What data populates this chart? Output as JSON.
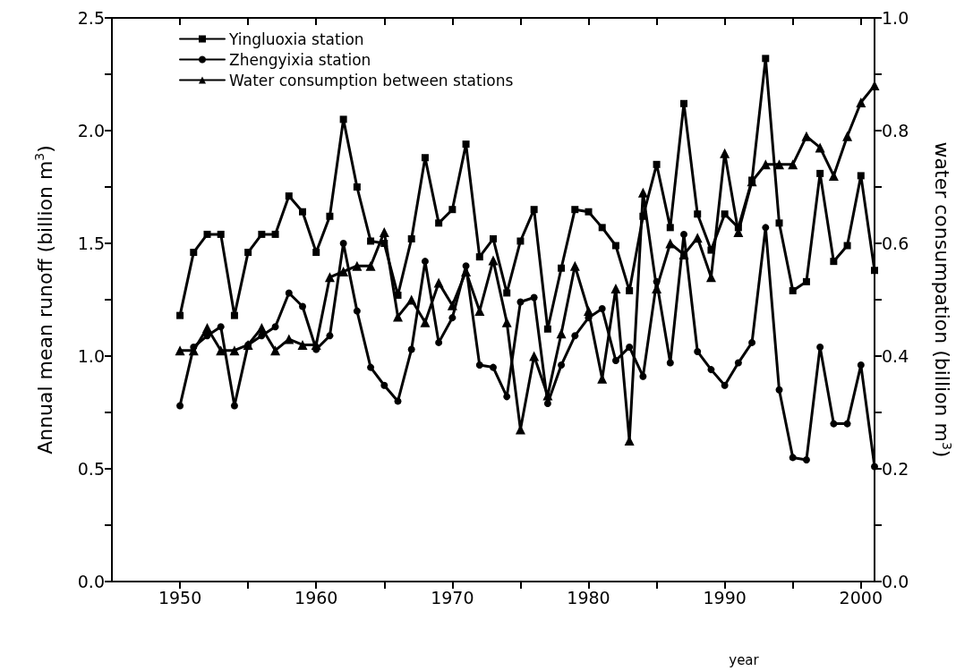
{
  "chart_data": {
    "type": "line",
    "xlabel": "year",
    "ylabel": "Annual mean runoff (billion m$^{3}$)",
    "y2label": "water consumpation (billion m$^{3}$)",
    "x": [
      1950,
      1951,
      1952,
      1953,
      1954,
      1955,
      1956,
      1957,
      1958,
      1959,
      1960,
      1961,
      1962,
      1963,
      1964,
      1965,
      1966,
      1967,
      1968,
      1969,
      1970,
      1971,
      1972,
      1973,
      1974,
      1975,
      1976,
      1977,
      1978,
      1979,
      1980,
      1981,
      1982,
      1983,
      1984,
      1985,
      1986,
      1987,
      1988,
      1989,
      1990,
      1991,
      1992,
      1993,
      1994,
      1995,
      1996,
      1997,
      1998,
      1999,
      2000,
      2001
    ],
    "series": [
      {
        "name": "Yingluoxia station",
        "color": "#000000",
        "marker": "square",
        "values": [
          1.18,
          1.46,
          1.54,
          1.54,
          1.18,
          1.46,
          1.54,
          1.54,
          1.71,
          1.64,
          1.46,
          1.62,
          2.05,
          1.75,
          1.51,
          1.5,
          1.27,
          1.52,
          1.88,
          1.59,
          1.65,
          1.94,
          1.44,
          1.52,
          1.28,
          1.51,
          1.65,
          1.12,
          1.39,
          1.65,
          1.64,
          1.57,
          1.49,
          1.29,
          1.62,
          1.85,
          1.57,
          2.12,
          1.63,
          1.47,
          1.63,
          1.57,
          1.78,
          2.32,
          1.59,
          1.29,
          1.33,
          1.81,
          1.42,
          1.49,
          1.8,
          1.38
        ]
      },
      {
        "name": "Zhengyixia station",
        "color": "#000000",
        "marker": "circle",
        "values": [
          0.78,
          1.04,
          1.09,
          1.13,
          0.78,
          1.05,
          1.09,
          1.13,
          1.28,
          1.22,
          1.03,
          1.09,
          1.5,
          1.2,
          0.95,
          0.87,
          0.8,
          1.03,
          1.42,
          1.06,
          1.17,
          1.4,
          0.96,
          0.95,
          0.82,
          1.24,
          1.26,
          0.79,
          0.96,
          1.09,
          1.17,
          1.21,
          0.98,
          1.04,
          0.91,
          1.33,
          0.97,
          1.54,
          1.02,
          0.94,
          0.87,
          0.97,
          1.06,
          1.57,
          0.85,
          0.55,
          0.54,
          1.04,
          0.7,
          0.7,
          0.96,
          0.51
        ]
      },
      {
        "name": "Water consumption between stations",
        "color": "#000000",
        "marker": "triangle",
        "axis": "y2",
        "values": [
          0.41,
          0.41,
          0.45,
          0.41,
          0.41,
          0.42,
          0.45,
          0.41,
          0.43,
          0.42,
          0.42,
          0.54,
          0.55,
          0.56,
          0.56,
          0.62,
          0.47,
          0.5,
          0.46,
          0.53,
          0.49,
          0.55,
          0.48,
          0.57,
          0.46,
          0.27,
          0.4,
          0.33,
          0.44,
          0.56,
          0.48,
          0.36,
          0.52,
          0.25,
          0.69,
          0.52,
          0.6,
          0.58,
          0.61,
          0.54,
          0.76,
          0.62,
          0.71,
          0.74,
          0.74,
          0.74,
          0.79,
          0.77,
          0.72,
          0.79,
          0.85,
          0.88
        ]
      }
    ],
    "xlim": [
      1945,
      2001
    ],
    "xticks": [
      1950,
      1960,
      1970,
      1980,
      1990,
      2000,
      {
        "value": 1955,
        "label": null
      },
      {
        "value": 1965,
        "label": null
      },
      {
        "value": 1975,
        "label": null
      },
      {
        "value": 1985,
        "label": null
      },
      {
        "value": 1995,
        "label": null
      }
    ],
    "ylim": [
      0,
      2.5
    ],
    "yticks": [
      {
        "value": 0,
        "label": "0.0"
      },
      {
        "value": 0.5,
        "label": "0.5"
      },
      {
        "value": 1,
        "label": "1.0"
      },
      {
        "value": 1.5,
        "label": "1.5"
      },
      {
        "value": 2,
        "label": "2.0"
      },
      {
        "value": 2.5,
        "label": "2.5"
      },
      {
        "value": 0.25,
        "label": null
      },
      {
        "value": 0.75,
        "label": null
      },
      {
        "value": 1.25,
        "label": null
      },
      {
        "value": 1.75,
        "label": null
      },
      {
        "value": 2.25,
        "label": null
      }
    ],
    "y2lim": [
      0,
      1
    ],
    "y2ticks": [
      {
        "value": 0,
        "label": "0.0"
      },
      {
        "value": 0.2,
        "label": "0.2"
      },
      {
        "value": 0.4,
        "label": "0.4"
      },
      {
        "value": 0.6,
        "label": "0.6"
      },
      {
        "value": 0.8,
        "label": "0.8"
      },
      {
        "value": 1,
        "label": "1.0"
      },
      {
        "value": 0.1,
        "label": null
      },
      {
        "value": 0.3,
        "label": null
      },
      {
        "value": 0.5,
        "label": null
      },
      {
        "value": 0.7,
        "label": null
      },
      {
        "value": 0.9,
        "label": null
      }
    ],
    "grid": false,
    "legend": "top left"
  }
}
